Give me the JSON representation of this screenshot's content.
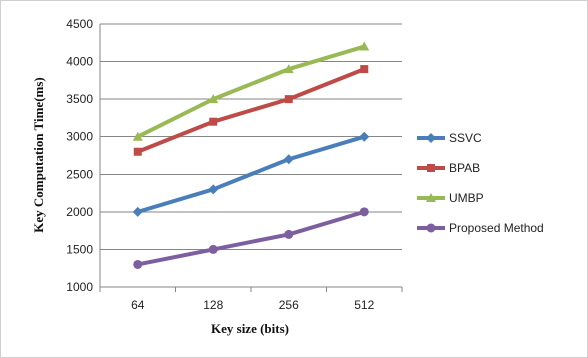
{
  "chart_data": {
    "type": "line",
    "title": "",
    "xlabel": "Key size (bits)",
    "ylabel": "Key Computation Time(ms)",
    "categories": [
      "64",
      "128",
      "256",
      "512"
    ],
    "ylim": [
      1000,
      4500
    ],
    "yticks": [
      1000,
      1500,
      2000,
      2500,
      3000,
      3500,
      4000,
      4500
    ],
    "grid": "horizontal",
    "legend_position": "right",
    "series": [
      {
        "name": "SSVC",
        "color": "#4a7ebb",
        "marker": "diamond",
        "values": [
          2000,
          2300,
          2700,
          3000
        ]
      },
      {
        "name": "BPAB",
        "color": "#be4b48",
        "marker": "square",
        "values": [
          2800,
          3200,
          3500,
          3900
        ]
      },
      {
        "name": "UMBP",
        "color": "#98b954",
        "marker": "triangle",
        "values": [
          3000,
          3500,
          3900,
          4200
        ]
      },
      {
        "name": "Proposed Method",
        "color": "#7d5fa0",
        "marker": "circle",
        "values": [
          1300,
          1500,
          1700,
          2000
        ]
      }
    ]
  }
}
